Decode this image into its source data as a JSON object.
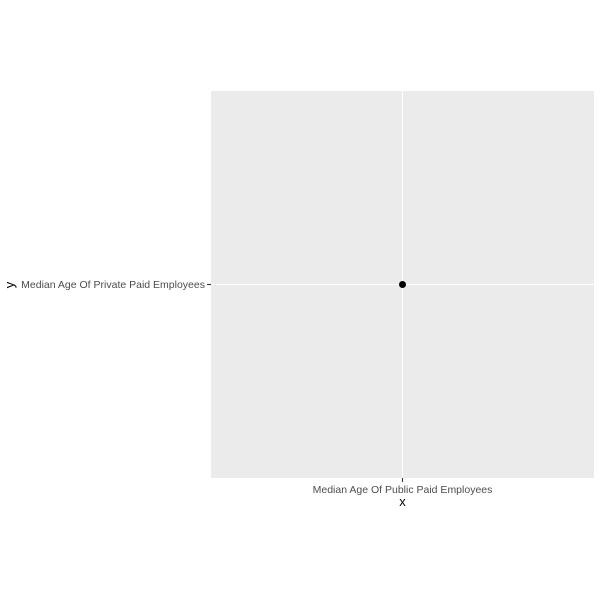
{
  "chart_data": {
    "type": "scatter",
    "title": "",
    "xlabel": "x",
    "ylabel": "y",
    "x_categories": [
      "Median Age Of Public Paid Employees"
    ],
    "y_categories": [
      "Median Age Of Private Paid Employees"
    ],
    "points": [
      {
        "x": "Median Age Of Public Paid Employees",
        "y": "Median Age Of Private Paid Employees"
      }
    ],
    "grid": true,
    "legend": "none",
    "colors": {
      "panel_background": "#ebebeb",
      "grid": "#ffffff",
      "point": "#000000",
      "tick": "#333333",
      "tick_label": "#4d4d4d"
    }
  }
}
